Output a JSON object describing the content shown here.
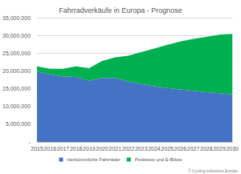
{
  "chart_data": {
    "type": "area",
    "title": "Fahrradverkäufe in Europa - Prognose",
    "categories": [
      "2015",
      "2016",
      "2017",
      "2018",
      "2019",
      "2020",
      "2021",
      "2022",
      "2023",
      "2024",
      "2025",
      "2026",
      "2027",
      "2028",
      "2029",
      "2030"
    ],
    "series": [
      {
        "name": "Herkömmliche Fahrräder",
        "color": "#4472c4",
        "values": [
          19800000,
          19000000,
          18400000,
          18300000,
          17300000,
          18000000,
          18000000,
          17000000,
          16300000,
          15700000,
          15200000,
          14800000,
          14400000,
          14000000,
          13700000,
          13400000
        ]
      },
      {
        "name": "Pedelecs und E-Bikes",
        "color": "#00b050",
        "values": [
          1500000,
          1600000,
          2200000,
          3000000,
          3500000,
          4800000,
          5800000,
          7300000,
          9000000,
          10600000,
          12100000,
          13500000,
          14600000,
          15600000,
          16500000,
          17000000
        ]
      }
    ],
    "stacked": true,
    "ylim": [
      0,
      35000000
    ],
    "yticks": [
      {
        "value": 0,
        "label": "-"
      },
      {
        "value": 5000000,
        "label": "5,000,000"
      },
      {
        "value": 10000000,
        "label": "10,000,000"
      },
      {
        "value": 15000000,
        "label": "15,000,000"
      },
      {
        "value": 20000000,
        "label": "20,000,000"
      },
      {
        "value": 25000000,
        "label": "25,000,000"
      },
      {
        "value": 30000000,
        "label": "30,000,000"
      },
      {
        "value": 35000000,
        "label": "35,000,000"
      }
    ],
    "grid": true,
    "legend": "bottom",
    "annotations": [
      "© Cycling Industries Europe"
    ]
  }
}
